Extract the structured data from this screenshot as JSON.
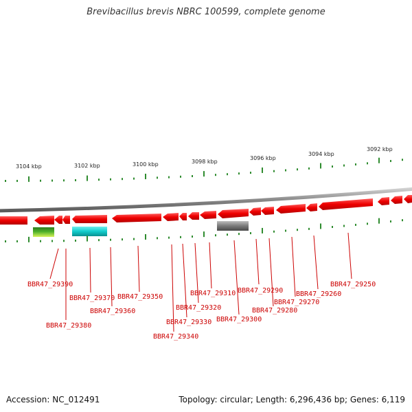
{
  "title": "Brevibacillus brevis NBRC 100599, complete genome",
  "footer": {
    "accession": "Accession: NC_012491",
    "summary": "Topology: circular; Length: 6,296,436 bp; Genes: 6,119"
  },
  "scale_labels": [
    "3104 kbp",
    "3102 kbp",
    "3100 kbp",
    "3098 kbp",
    "3096 kbp",
    "3094 kbp",
    "3092 kbp"
  ],
  "gene_labels": [
    "BBR47_29390",
    "BBR47_29380",
    "BBR47_29370",
    "BBR47_29360",
    "BBR47_29350",
    "BBR47_29340",
    "BBR47_29330",
    "BBR47_29320",
    "BBR47_29310",
    "BBR47_29300",
    "BBR47_29290",
    "BBR47_29280",
    "BBR47_29270",
    "BBR47_29260",
    "BBR47_29250"
  ],
  "colors": {
    "gene_forward": "#ee0000",
    "backbone": "#808080",
    "tick": "#2e8b2e",
    "label": "#cc0000",
    "rna_green": "#7ccc22",
    "rna_cyan": "#11cccc",
    "misc_gray": "#707070"
  }
}
